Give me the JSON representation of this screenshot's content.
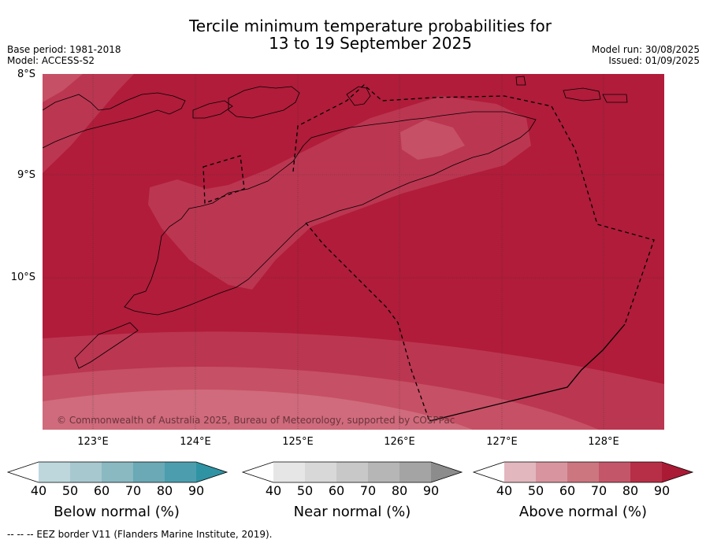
{
  "title_line1": "Tercile minimum temperature probabilities for",
  "title_line2": "13 to 19 September 2025",
  "meta_left": [
    "Base period: 1981-2018",
    "Model: ACCESS-S2"
  ],
  "meta_right": [
    "Model run: 30/08/2025",
    "Issued: 01/09/2025"
  ],
  "map": {
    "lat_labels": [
      "8°S",
      "9°S",
      "10°S"
    ],
    "lon_labels": [
      "123°E",
      "124°E",
      "125°E",
      "126°E",
      "127°E",
      "128°E"
    ],
    "copyright": "© Commonwealth of Australia 2025, Bureau of Meteorology, supported by COSPPac",
    "colors": {
      "above_90": "#b01c3a",
      "above_80": "#bb3651",
      "above_70": "#c65065",
      "above_60": "#cf6b7c",
      "border": "#000000",
      "grid": "#333333"
    }
  },
  "legends": [
    {
      "name": "below",
      "title": "Below normal (%)",
      "ticks": [
        "40",
        "50",
        "60",
        "70",
        "80",
        "90"
      ],
      "colors": [
        "#ffffff",
        "#bed7dd",
        "#a7c8ce",
        "#8ab9c2",
        "#6aa9b5",
        "#4c9eae",
        "#2f93a4"
      ]
    },
    {
      "name": "near",
      "title": "Near normal (%)",
      "ticks": [
        "40",
        "50",
        "60",
        "70",
        "80",
        "90"
      ],
      "colors": [
        "#ffffff",
        "#e6e6e6",
        "#d8d8d8",
        "#c8c8c8",
        "#b6b6b6",
        "#a4a4a4",
        "#8c8c8c"
      ]
    },
    {
      "name": "above",
      "title": "Above normal (%)",
      "ticks": [
        "40",
        "50",
        "60",
        "70",
        "80",
        "90"
      ],
      "colors": [
        "#ffffff",
        "#e2b7be",
        "#d8959f",
        "#cc7680",
        "#c4566a",
        "#b62f47",
        "#aa1a35"
      ]
    }
  ],
  "footnote": "--  --  -- EEZ border V11 (Flanders Marine Institute, 2019)."
}
